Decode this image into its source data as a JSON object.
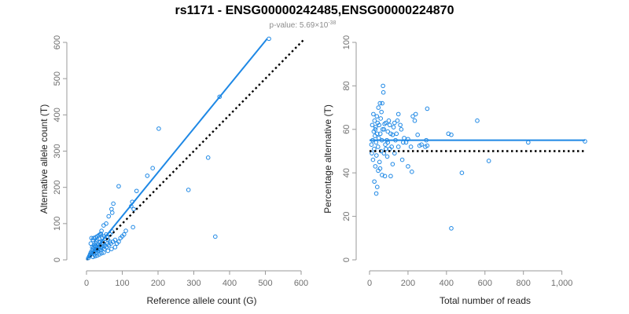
{
  "page": {
    "title": "rs1171 - ENSG00000242485,ENSG00000224870",
    "subtitle_prefix": "p-value: 5.69×10",
    "subtitle_exponent": "-38"
  },
  "colors": {
    "points": "#1e88e5",
    "fit_line": "#1e88e5",
    "reference_line": "#000000"
  },
  "chart_data": [
    {
      "type": "scatter",
      "xlabel": "Reference allele count (G)",
      "ylabel": "Alternative allele count (T)",
      "xlim": [
        0,
        600
      ],
      "ylim": [
        0,
        600
      ],
      "xticks": [
        0,
        100,
        200,
        300,
        400,
        500,
        600
      ],
      "xtick_labels": [
        "0",
        "100",
        "200",
        "300",
        "400",
        "500",
        "600"
      ],
      "yticks": [
        0,
        100,
        200,
        300,
        400,
        500,
        600
      ],
      "ytick_labels": [
        "0",
        "100",
        "200",
        "300",
        "400",
        "500",
        "600"
      ],
      "grid": false,
      "reference_line": {
        "style": "dotted",
        "from": [
          0,
          0
        ],
        "to": [
          610,
          610
        ]
      },
      "fit_line": {
        "style": "solid",
        "from": [
          0,
          0
        ],
        "to": [
          505,
          610
        ]
      },
      "points": [
        [
          510,
          610
        ],
        [
          372,
          450
        ],
        [
          202,
          362
        ],
        [
          90,
          203
        ],
        [
          185,
          253
        ],
        [
          170,
          232
        ],
        [
          140,
          190
        ],
        [
          128,
          160
        ],
        [
          125,
          148
        ],
        [
          132,
          140
        ],
        [
          285,
          193
        ],
        [
          340,
          282
        ],
        [
          360,
          64
        ],
        [
          130,
          90
        ],
        [
          110,
          80
        ],
        [
          75,
          155
        ],
        [
          70,
          140
        ],
        [
          72,
          130
        ],
        [
          62,
          120
        ],
        [
          55,
          100
        ],
        [
          48,
          95
        ],
        [
          42,
          80
        ],
        [
          38,
          70
        ],
        [
          35,
          58
        ],
        [
          30,
          55
        ],
        [
          28,
          50
        ],
        [
          25,
          45
        ],
        [
          22,
          40
        ],
        [
          20,
          35
        ],
        [
          18,
          30
        ],
        [
          15,
          25
        ],
        [
          12,
          20
        ],
        [
          10,
          15
        ],
        [
          8,
          10
        ],
        [
          5,
          5
        ],
        [
          14,
          60
        ],
        [
          20,
          60
        ],
        [
          25,
          62
        ],
        [
          30,
          65
        ],
        [
          35,
          68
        ],
        [
          40,
          72
        ],
        [
          45,
          60
        ],
        [
          50,
          65
        ],
        [
          55,
          70
        ],
        [
          60,
          55
        ],
        [
          65,
          50
        ],
        [
          58,
          45
        ],
        [
          52,
          40
        ],
        [
          46,
          38
        ],
        [
          40,
          35
        ],
        [
          35,
          30
        ],
        [
          30,
          28
        ],
        [
          25,
          25
        ],
        [
          20,
          22
        ],
        [
          15,
          18
        ],
        [
          10,
          12
        ],
        [
          22,
          15
        ],
        [
          28,
          20
        ],
        [
          32,
          25
        ],
        [
          38,
          28
        ],
        [
          44,
          32
        ],
        [
          50,
          30
        ],
        [
          56,
          35
        ],
        [
          62,
          40
        ],
        [
          68,
          45
        ],
        [
          74,
          50
        ],
        [
          80,
          55
        ],
        [
          95,
          60
        ],
        [
          100,
          65
        ],
        [
          105,
          70
        ],
        [
          48,
          20
        ],
        [
          42,
          18
        ],
        [
          36,
          15
        ],
        [
          30,
          12
        ],
        [
          24,
          10
        ],
        [
          18,
          8
        ],
        [
          60,
          25
        ],
        [
          70,
          30
        ],
        [
          80,
          35
        ],
        [
          85,
          45
        ],
        [
          90,
          50
        ],
        [
          18,
          55
        ],
        [
          12,
          45
        ],
        [
          16,
          35
        ],
        [
          24,
          30
        ],
        [
          26,
          38
        ],
        [
          33,
          42
        ],
        [
          38,
          48
        ],
        [
          44,
          52
        ],
        [
          47,
          45
        ],
        [
          52,
          58
        ],
        [
          58,
          62
        ],
        [
          66,
          70
        ],
        [
          72,
          78
        ]
      ]
    },
    {
      "type": "scatter",
      "xlabel": "Total number of reads",
      "ylabel": "Percentage alternative (T)",
      "xlim": [
        0,
        1120
      ],
      "ylim": [
        0,
        100
      ],
      "xticks": [
        0,
        200,
        400,
        600,
        800,
        1000
      ],
      "xtick_labels": [
        "0",
        "200",
        "400",
        "600",
        "800",
        "1,000"
      ],
      "yticks": [
        0,
        20,
        40,
        60,
        80,
        100
      ],
      "ytick_labels": [
        "0",
        "20",
        "40",
        "60",
        "80",
        "100"
      ],
      "grid": false,
      "reference_line": {
        "style": "dotted",
        "from": [
          0,
          50
        ],
        "to": [
          1120,
          50
        ]
      },
      "fit_line": {
        "style": "solid",
        "from": [
          0,
          55
        ],
        "to": [
          1120,
          55
        ]
      },
      "points": [
        [
          1120,
          54.5
        ],
        [
          825,
          54
        ],
        [
          620,
          45.5
        ],
        [
          560,
          64
        ],
        [
          480,
          40
        ],
        [
          425,
          57.5
        ],
        [
          410,
          58
        ],
        [
          425,
          14.5
        ],
        [
          300,
          69.5
        ],
        [
          295,
          55
        ],
        [
          290,
          52
        ],
        [
          270,
          53
        ],
        [
          260,
          52.5
        ],
        [
          250,
          57.5
        ],
        [
          240,
          67
        ],
        [
          235,
          64
        ],
        [
          225,
          66
        ],
        [
          215,
          52
        ],
        [
          220,
          40.5
        ],
        [
          200,
          43
        ],
        [
          200,
          55.5
        ],
        [
          180,
          56
        ],
        [
          175,
          54
        ],
        [
          165,
          60
        ],
        [
          160,
          62
        ],
        [
          150,
          67
        ],
        [
          145,
          64
        ],
        [
          140,
          58
        ],
        [
          135,
          55
        ],
        [
          130,
          63
        ],
        [
          125,
          61
        ],
        [
          120,
          57.5
        ],
        [
          115,
          52
        ],
        [
          110,
          58
        ],
        [
          105,
          62
        ],
        [
          100,
          64
        ],
        [
          95,
          59
        ],
        [
          92,
          47.5
        ],
        [
          90,
          55
        ],
        [
          85,
          51
        ],
        [
          82,
          53
        ],
        [
          80,
          38.5
        ],
        [
          78,
          62.5
        ],
        [
          75,
          49
        ],
        [
          72,
          77
        ],
        [
          70,
          80
        ],
        [
          68,
          60
        ],
        [
          66,
          72
        ],
        [
          64,
          55
        ],
        [
          62,
          68
        ],
        [
          60,
          50
        ],
        [
          58,
          65
        ],
        [
          56,
          58
        ],
        [
          54,
          72
        ],
        [
          52,
          45
        ],
        [
          50,
          62
        ],
        [
          48,
          56
        ],
        [
          46,
          70
        ],
        [
          44,
          52
        ],
        [
          42,
          63
        ],
        [
          40,
          58
        ],
        [
          38,
          66
        ],
        [
          36,
          48
        ],
        [
          34,
          54
        ],
        [
          32,
          61
        ],
        [
          30,
          43
        ],
        [
          28,
          57
        ],
        [
          26,
          64
        ],
        [
          25,
          36
        ],
        [
          24,
          51
        ],
        [
          22,
          59
        ],
        [
          20,
          67
        ],
        [
          18,
          46
        ],
        [
          16,
          55
        ],
        [
          14,
          62
        ],
        [
          12,
          49
        ],
        [
          10,
          53
        ],
        [
          35,
          30.5
        ],
        [
          40,
          33.5
        ],
        [
          30,
          60
        ],
        [
          45,
          41
        ],
        [
          55,
          42
        ],
        [
          65,
          39
        ],
        [
          75,
          60
        ],
        [
          85,
          63
        ],
        [
          95,
          54
        ],
        [
          105,
          51
        ],
        [
          110,
          38.5
        ],
        [
          120,
          44
        ],
        [
          130,
          49
        ],
        [
          150,
          52
        ],
        [
          170,
          46
        ],
        [
          190,
          54
        ],
        [
          300,
          52.5
        ]
      ]
    }
  ]
}
